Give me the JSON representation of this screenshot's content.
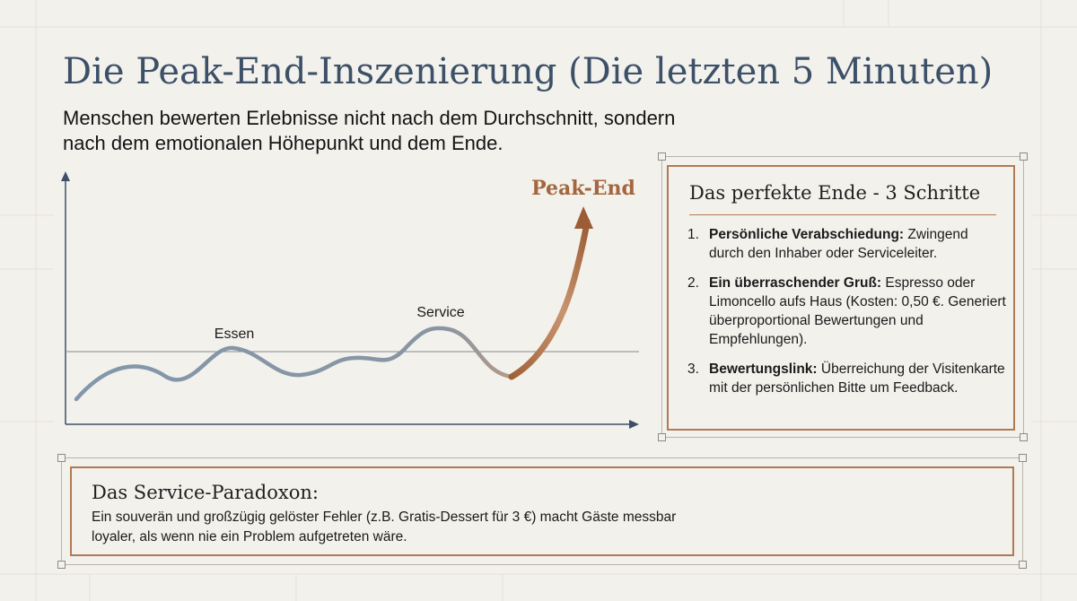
{
  "title": "Die Peak-End-Inszenierung (Die letzten 5 Minuten)",
  "subtitle": "Menschen bewerten Erlebnisse nicht nach dem Durchschnitt, sondern nach dem emotionalen Höhepunkt und dem Ende.",
  "chart": {
    "labels": {
      "essen": "Essen",
      "service": "Service",
      "peak_end": "Peak-End"
    },
    "colors": {
      "axis": "#3c5068",
      "wave": "#8297ab",
      "peak": "#a4663e",
      "baseline": "#7f8a92"
    }
  },
  "steps_card": {
    "title": "Das perfekte Ende - 3 Schritte",
    "items": [
      {
        "number": "1.",
        "heading": "Persönliche Verabschiedung:",
        "text": " Zwingend durch den Inhaber oder Serviceleiter."
      },
      {
        "number": "2.",
        "heading": "Ein überraschender Gruß:",
        "text": " Espresso oder Limoncello aufs Haus (Kosten: 0,50 €. Generiert überproportional Bewertungen und Empfehlungen)."
      },
      {
        "number": "3.",
        "heading": "Bewertungslink:",
        "text": " Überreichung der Visitenkarte mit der persönlichen Bitte um Feedback."
      }
    ]
  },
  "paradox_card": {
    "title": "Das Service-Paradoxon:",
    "text": "Ein souverän und großzügig gelöster Fehler (z.B. Gratis-Dessert für 3 €) macht Gäste messbar loyaler, als wenn nie ein Problem aufgetreten wäre."
  },
  "colors": {
    "accent": "#b07a55",
    "title": "#3c5068",
    "background": "#f3f1ec"
  }
}
